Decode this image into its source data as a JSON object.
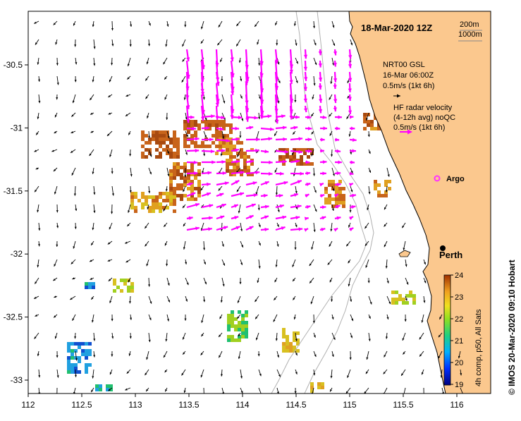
{
  "title": "18-Mar-2020 12Z",
  "scale": {
    "depth_a": "200m",
    "depth_b": "1000m"
  },
  "axes": {
    "x_ticks": [
      "112",
      "112.5",
      "113",
      "113.5",
      "114",
      "114.5",
      "115",
      "115.5",
      "116"
    ],
    "y_ticks": [
      "-30.5",
      "-31",
      "-31.5",
      "-32",
      "-32.5",
      "-33"
    ],
    "x_range": [
      112,
      116.3
    ],
    "y_range": [
      -33.1,
      -30.1
    ]
  },
  "legend": {
    "model_lines": [
      "NRT00 GSL",
      "16-Mar 06:00Z",
      "0.5m/s (1kt 6h)"
    ],
    "radar_lines": [
      "HF radar velocity",
      "(4-12h avg) noQC",
      "0.5m/s (1kt 6h)"
    ],
    "argo_label": "Argo"
  },
  "place": {
    "name": "Perth",
    "lon": 115.86,
    "lat": -31.95
  },
  "colorbar": {
    "ticks": [
      "24",
      "23",
      "22",
      "21",
      "20",
      "19"
    ],
    "label": "4h comp, p50, All Sats"
  },
  "credit": "© IMOS 20-Mar-2020 09:10 Hobart",
  "colors": {
    "land": "#fbc88e",
    "radar": "#ff00ff",
    "argo": "#ff33ff"
  }
}
